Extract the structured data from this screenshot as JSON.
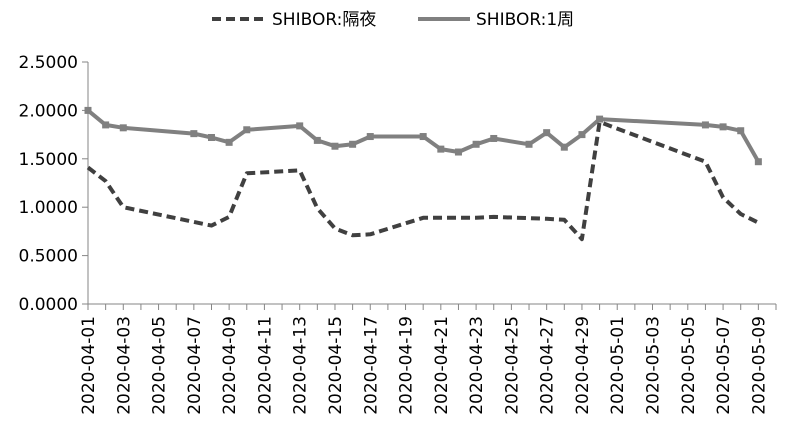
{
  "chart_data": {
    "type": "line",
    "title": "",
    "xlabel": "",
    "ylabel": "",
    "ylim": [
      0,
      2.5
    ],
    "yticks": [
      0,
      0.5,
      1.0,
      1.5,
      2.0,
      2.5
    ],
    "ytick_labels": [
      "0.0000",
      "0.5000",
      "1.0000",
      "1.5000",
      "2.0000",
      "2.5000"
    ],
    "xlim": [
      "2020-04-01",
      "2020-05-10"
    ],
    "xtick_labels": [
      "2020-04-01",
      "2020-04-03",
      "2020-04-05",
      "2020-04-07",
      "2020-04-09",
      "2020-04-11",
      "2020-04-13",
      "2020-04-15",
      "2020-04-17",
      "2020-04-19",
      "2020-04-21",
      "2020-04-23",
      "2020-04-25",
      "2020-04-27",
      "2020-04-29",
      "2020-05-01",
      "2020-05-03",
      "2020-05-05",
      "2020-05-07",
      "2020-05-09"
    ],
    "grid": false,
    "legend_position": "top-center",
    "series": [
      {
        "name": "SHIBOR:隔夜",
        "style": "dashed",
        "color": "#404040",
        "x": [
          "2020-04-01",
          "2020-04-02",
          "2020-04-03",
          "2020-04-08",
          "2020-04-09",
          "2020-04-10",
          "2020-04-13",
          "2020-04-14",
          "2020-04-15",
          "2020-04-16",
          "2020-04-17",
          "2020-04-20",
          "2020-04-21",
          "2020-04-22",
          "2020-04-23",
          "2020-04-24",
          "2020-04-27",
          "2020-04-28",
          "2020-04-29",
          "2020-04-30",
          "2020-05-06",
          "2020-05-07",
          "2020-05-08",
          "2020-05-09"
        ],
        "values": [
          1.41,
          1.27,
          1.0,
          0.81,
          0.9,
          1.35,
          1.38,
          0.99,
          0.78,
          0.71,
          0.72,
          0.89,
          0.89,
          0.89,
          0.89,
          0.9,
          0.88,
          0.87,
          0.67,
          1.88,
          1.47,
          1.1,
          0.93,
          0.84
        ]
      },
      {
        "name": "SHIBOR:1周",
        "style": "solid",
        "color": "#808080",
        "x": [
          "2020-04-01",
          "2020-04-02",
          "2020-04-03",
          "2020-04-07",
          "2020-04-08",
          "2020-04-09",
          "2020-04-10",
          "2020-04-13",
          "2020-04-14",
          "2020-04-15",
          "2020-04-16",
          "2020-04-17",
          "2020-04-20",
          "2020-04-21",
          "2020-04-22",
          "2020-04-23",
          "2020-04-24",
          "2020-04-26",
          "2020-04-27",
          "2020-04-28",
          "2020-04-29",
          "2020-04-30",
          "2020-05-06",
          "2020-05-07",
          "2020-05-08",
          "2020-05-09"
        ],
        "values": [
          2.0,
          1.85,
          1.82,
          1.76,
          1.72,
          1.67,
          1.8,
          1.84,
          1.69,
          1.63,
          1.65,
          1.73,
          1.73,
          1.6,
          1.57,
          1.65,
          1.71,
          1.65,
          1.77,
          1.62,
          1.75,
          1.91,
          1.85,
          1.83,
          1.79,
          1.47
        ]
      }
    ]
  }
}
